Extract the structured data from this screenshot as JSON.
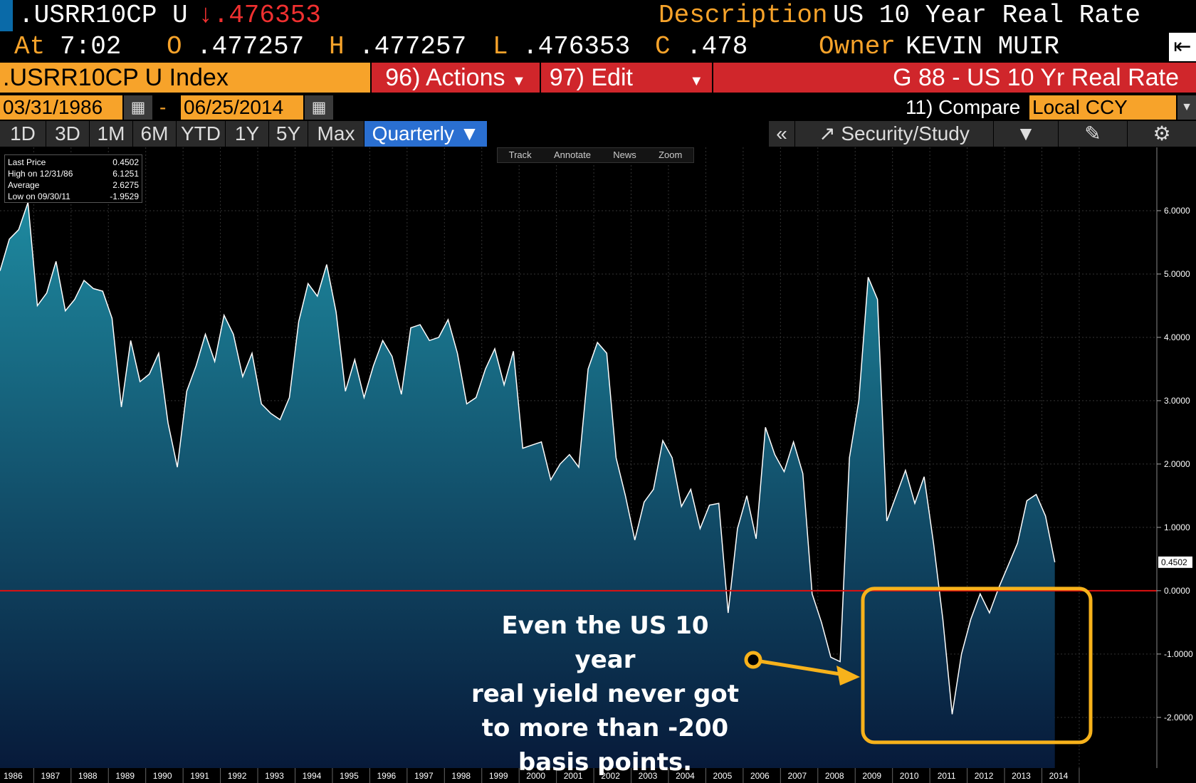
{
  "header": {
    "ticker": ".USRR10CP U",
    "change": "↓.476353",
    "description_label": "Description",
    "description_value": "US 10 Year Real Rate",
    "at_label": "At",
    "time": "7:02",
    "open_label": "O",
    "open": ".477257",
    "high_label": "H",
    "high": ".477257",
    "low_label": "L",
    "low": ".476353",
    "close_label": "C",
    "close": ".478",
    "owner_label": "Owner",
    "owner": "KEVIN MUIR",
    "index_name": ".USRR10CP U Index",
    "actions": "96) Actions",
    "edit": "97) Edit",
    "graph_title": "G 88 - US 10 Yr Real Rate",
    "start_date": "03/31/1986",
    "date_sep": "-",
    "end_date": "06/25/2014",
    "compare": "11) Compare",
    "currency": "Local CCY"
  },
  "toolbar": {
    "ranges": [
      "1D",
      "3D",
      "1M",
      "6M",
      "YTD",
      "1Y",
      "5Y",
      "Max"
    ],
    "period": "Quarterly ▼",
    "collapse": "«",
    "security_study": "Security/Study"
  },
  "chart_tools": [
    "Track",
    "Annotate",
    "News",
    "Zoom"
  ],
  "legend": [
    {
      "label": "Last Price",
      "value": "0.4502"
    },
    {
      "label": "High on 12/31/86",
      "value": "6.1251"
    },
    {
      "label": "Average",
      "value": "2.6275"
    },
    {
      "label": "Low on 09/30/11",
      "value": "-1.9529"
    }
  ],
  "annotation": {
    "lines": [
      "Even the US 10 year",
      "real yield never got",
      "to more than -200",
      "basis points."
    ],
    "color": "#f7b21b"
  },
  "colors": {
    "line": "#ffffff",
    "zero_line": "#e01010",
    "fill_top": "#1e8aa0",
    "fill_bottom": "#071a3a",
    "accent": "#f7a32a"
  },
  "chart_data": {
    "type": "area",
    "frequency": "quarterly",
    "x_start": "1986-03-31",
    "y_ticks": [
      "6.0000",
      "5.0000",
      "4.0000",
      "3.0000",
      "2.0000",
      "1.0000",
      "0.0000",
      "-1.0000",
      "-2.0000"
    ],
    "y_range": [
      -2.8,
      7.0
    ],
    "x_labels": [
      "1986",
      "1987",
      "1988",
      "1989",
      "1990",
      "1991",
      "1992",
      "1993",
      "1994",
      "1995",
      "1996",
      "1997",
      "1998",
      "1999",
      "2000",
      "2001",
      "2002",
      "2003",
      "2004",
      "2005",
      "2006",
      "2007",
      "2008",
      "2009",
      "2010",
      "2011",
      "2012",
      "2013",
      "2014"
    ],
    "last_value_label": "0.4502",
    "reference_line": 0,
    "values": [
      5.05,
      5.55,
      5.7,
      6.13,
      4.5,
      4.7,
      5.2,
      4.42,
      4.6,
      4.9,
      4.77,
      4.73,
      4.3,
      2.9,
      3.95,
      3.3,
      3.42,
      3.75,
      2.65,
      1.95,
      3.15,
      3.55,
      4.05,
      3.62,
      4.35,
      4.05,
      3.38,
      3.75,
      2.95,
      2.8,
      2.7,
      3.05,
      4.25,
      4.85,
      4.65,
      5.15,
      4.4,
      3.15,
      3.65,
      3.05,
      3.55,
      3.95,
      3.7,
      3.1,
      4.15,
      4.2,
      3.95,
      4.0,
      4.28,
      3.75,
      2.95,
      3.05,
      3.5,
      3.82,
      3.25,
      3.78,
      2.25,
      2.3,
      2.35,
      1.75,
      2.0,
      2.15,
      1.95,
      3.5,
      3.92,
      3.75,
      2.1,
      1.5,
      0.8,
      1.4,
      1.6,
      2.37,
      2.1,
      1.33,
      1.6,
      0.98,
      1.35,
      1.38,
      -0.35,
      0.98,
      1.5,
      0.82,
      2.58,
      2.15,
      1.88,
      2.35,
      1.85,
      -0.05,
      -0.5,
      -1.05,
      -1.12,
      2.1,
      3.0,
      4.95,
      4.6,
      1.1,
      1.5,
      1.9,
      1.38,
      1.8,
      0.75,
      -0.45,
      -1.95,
      -1.0,
      -0.45,
      -0.05,
      -0.35,
      0.05,
      0.4,
      0.75,
      1.42,
      1.52,
      1.18,
      0.45
    ]
  }
}
